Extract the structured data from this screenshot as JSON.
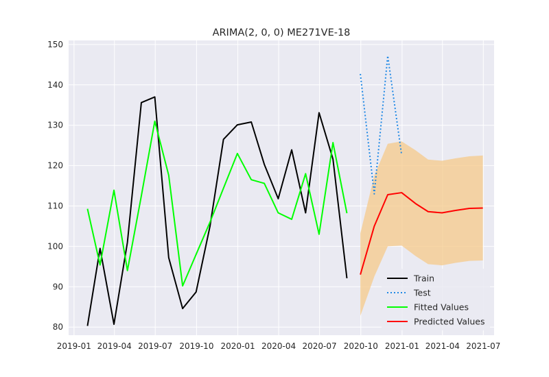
{
  "chart_data": {
    "type": "line",
    "title": "ARIMA(2, 0, 0) ME271VE-18",
    "xlabel": "",
    "ylabel": "",
    "xlim": [
      "2018-12-20",
      "2021-07-25"
    ],
    "ylim": [
      78,
      151
    ],
    "x_ticks": [
      "2019-01",
      "2019-04",
      "2019-07",
      "2019-10",
      "2020-01",
      "2020-04",
      "2020-07",
      "2020-10",
      "2021-01",
      "2021-04",
      "2021-07"
    ],
    "y_ticks": [
      80,
      90,
      100,
      110,
      120,
      130,
      140,
      150
    ],
    "grid": true,
    "legend_position": "lower-right",
    "colors": {
      "background": "#eaeaf2",
      "grid": "#ffffff",
      "train": "#000000",
      "test": "#1e88e5",
      "fitted": "#00ff00",
      "predicted": "#ff0000",
      "ci_fill": "#f5c98a"
    },
    "series": [
      {
        "name": "Train",
        "style": "solid",
        "x": [
          "2019-01-31",
          "2019-02-28",
          "2019-03-31",
          "2019-04-30",
          "2019-05-31",
          "2019-06-30",
          "2019-07-31",
          "2019-08-31",
          "2019-09-30",
          "2019-10-31",
          "2019-11-30",
          "2019-12-31",
          "2020-01-31",
          "2020-02-29",
          "2020-03-31",
          "2020-04-30",
          "2020-05-31",
          "2020-06-30",
          "2020-07-31",
          "2020-08-31"
        ],
        "values": [
          80.3,
          99.5,
          80.7,
          101.0,
          135.6,
          137.0,
          97.2,
          84.6,
          88.7,
          105.0,
          126.5,
          130.1,
          130.8,
          120.3,
          111.8,
          123.9,
          108.3,
          133.1,
          121.6,
          92.1
        ]
      },
      {
        "name": "Test",
        "style": "dotted",
        "x": [
          "2020-09-30",
          "2020-10-31",
          "2020-11-30",
          "2020-12-31"
        ],
        "values": [
          142.7,
          113.0,
          147.2,
          122.6
        ]
      },
      {
        "name": "Fitted Values",
        "style": "solid",
        "x": [
          "2019-01-31",
          "2019-02-28",
          "2019-03-31",
          "2019-04-30",
          "2019-05-31",
          "2019-06-30",
          "2019-07-31",
          "2019-08-31",
          "2019-09-30",
          "2019-10-31",
          "2019-11-30",
          "2019-12-31",
          "2020-01-31",
          "2020-02-29",
          "2020-03-31",
          "2020-04-30",
          "2020-05-31",
          "2020-06-30",
          "2020-07-31",
          "2020-08-31"
        ],
        "values": [
          109.3,
          95.4,
          113.9,
          94.0,
          112.5,
          131.0,
          117.6,
          90.2,
          98.0,
          106.0,
          114.4,
          123.0,
          116.5,
          115.6,
          108.3,
          106.7,
          118.0,
          103.0,
          125.7,
          108.2
        ]
      },
      {
        "name": "Predicted Values",
        "style": "solid",
        "x": [
          "2020-09-30",
          "2020-10-31",
          "2020-11-30",
          "2020-12-31",
          "2021-01-31",
          "2021-02-28",
          "2021-03-31",
          "2021-04-30",
          "2021-05-31",
          "2021-06-30"
        ],
        "values": [
          93.0,
          105.0,
          112.8,
          113.3,
          110.6,
          108.6,
          108.3,
          108.9,
          109.4,
          109.5
        ],
        "ci_lower": [
          82.8,
          92.5,
          100.0,
          100.2,
          97.6,
          95.6,
          95.3,
          95.9,
          96.4,
          96.5
        ],
        "ci_upper": [
          103.2,
          117.5,
          125.4,
          126.0,
          123.8,
          121.5,
          121.2,
          121.8,
          122.3,
          122.5
        ]
      }
    ]
  }
}
